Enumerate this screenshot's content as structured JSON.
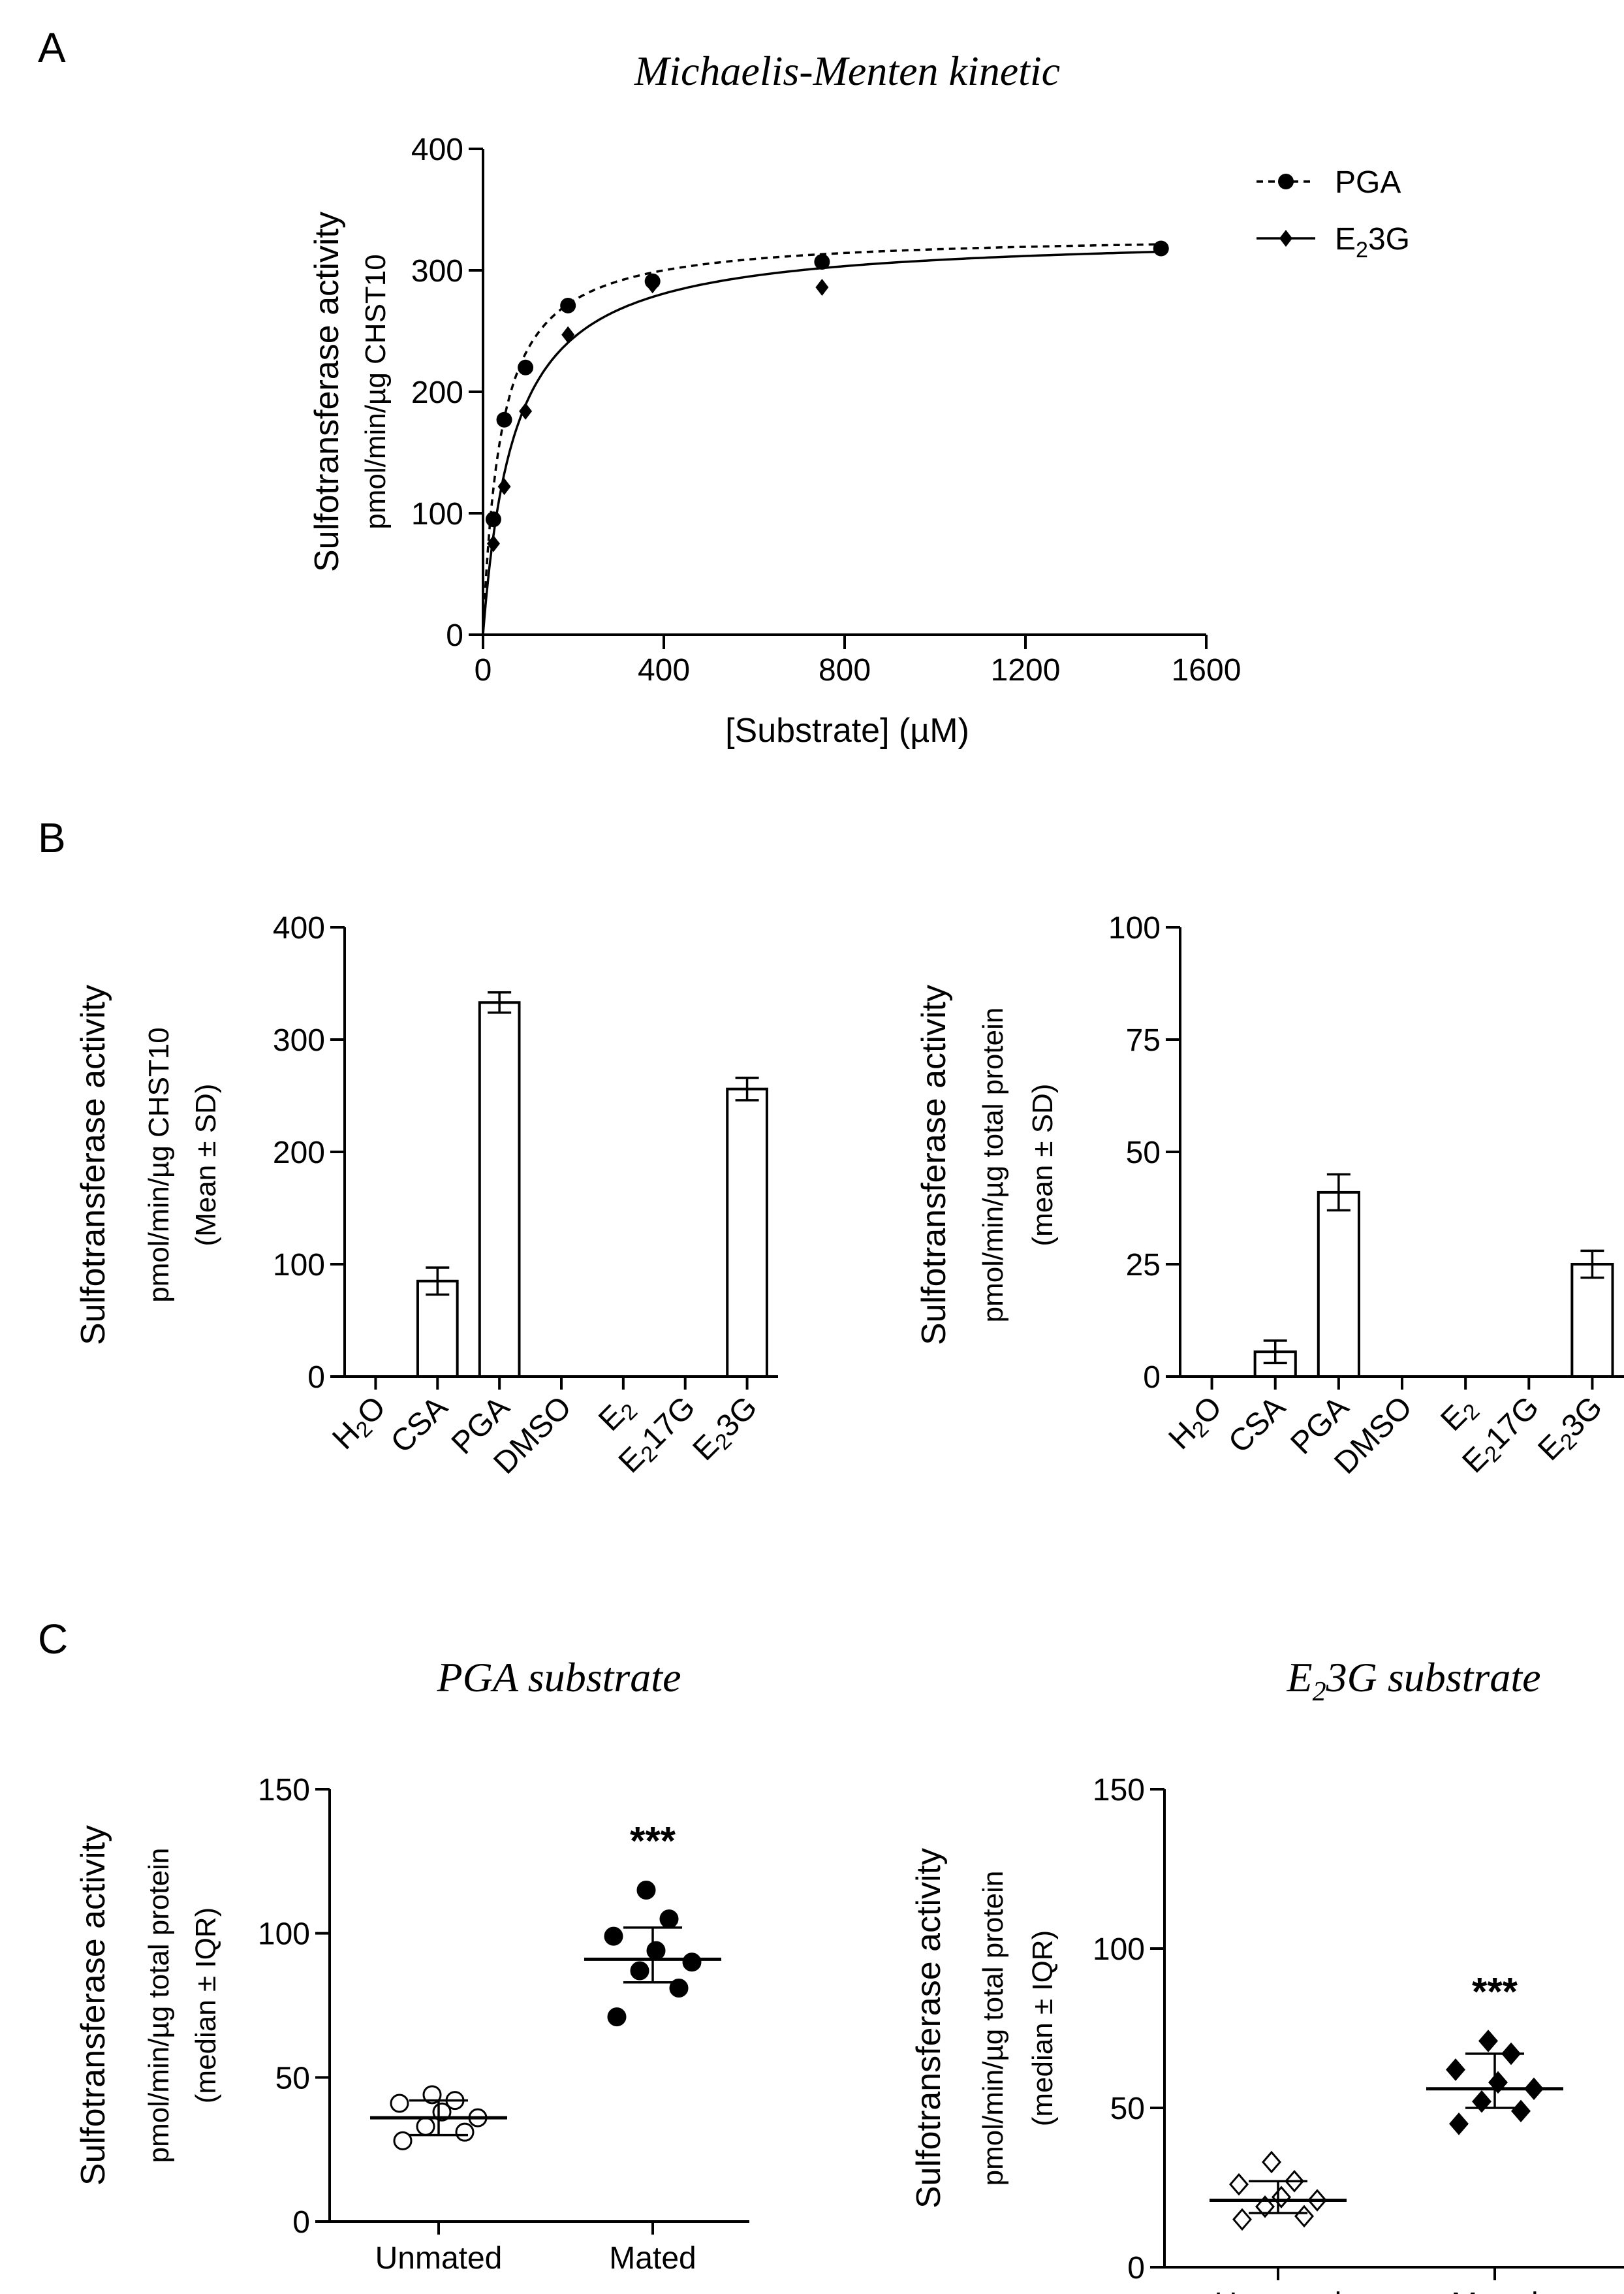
{
  "panels": {
    "A": "A",
    "B": "B",
    "C": "C"
  },
  "chart_data": [
    {
      "id": "A",
      "type": "scatter",
      "title": "Michaelis-Menten kinetic",
      "xlabel": "[Substrate] (µM)",
      "ylabel": "Sulfotransferase activity",
      "ylabel_sub": "pmol/min/µg CHST10",
      "xlim": [
        0,
        1600
      ],
      "ylim": [
        0,
        400
      ],
      "xticks": [
        0,
        400,
        800,
        1200,
        1600
      ],
      "yticks": [
        0,
        100,
        200,
        300,
        400
      ],
      "legend_position": "top-right",
      "series": [
        {
          "name": "PGA",
          "marker": "circle",
          "line": "dashed",
          "fit": {
            "vmax": 330,
            "km": 40
          },
          "x": [
            23,
            47,
            94,
            188,
            375,
            750,
            1500
          ],
          "y": [
            95,
            177,
            220,
            271,
            291,
            307,
            318
          ]
        },
        {
          "name": "E2_3G",
          "name_main": "E",
          "name_sub": "2",
          "name_tail": "3G",
          "marker": "diamond",
          "line": "solid",
          "fit": {
            "vmax": 330,
            "km": 70
          },
          "x": [
            23,
            47,
            94,
            188,
            375,
            750
          ],
          "y": [
            75,
            122,
            184,
            247,
            288,
            286
          ]
        }
      ]
    },
    {
      "id": "B1",
      "type": "bar",
      "ylabel": "Sulfotransferase activity",
      "ylabel_sub": "pmol/min/µg CHST10",
      "ylabel_sub2": "(Mean ± SD)",
      "ylim": [
        0,
        400
      ],
      "yticks": [
        0,
        100,
        200,
        300,
        400
      ],
      "categories": [
        {
          "main": "H",
          "sub": "2",
          "tail": "O"
        },
        {
          "main": "CSA",
          "sub": "",
          "tail": ""
        },
        {
          "main": "PGA",
          "sub": "",
          "tail": ""
        },
        {
          "main": "DMSO",
          "sub": "",
          "tail": ""
        },
        {
          "main": "E",
          "sub": "2",
          "tail": ""
        },
        {
          "main": "E",
          "sub": "2",
          "tail": "17G"
        },
        {
          "main": "E",
          "sub": "2",
          "tail": "3G"
        }
      ],
      "values": [
        0,
        85,
        333,
        0,
        0,
        0,
        256
      ],
      "errors": [
        0,
        12,
        9,
        0,
        0,
        0,
        10
      ]
    },
    {
      "id": "B2",
      "type": "bar",
      "ylabel": "Sulfotransferase activity",
      "ylabel_sub": "pmol/min/µg total protein",
      "ylabel_sub2": "(mean ± SD)",
      "ylim": [
        0,
        100
      ],
      "yticks": [
        0,
        25,
        50,
        75,
        100
      ],
      "categories": [
        {
          "main": "H",
          "sub": "2",
          "tail": "O"
        },
        {
          "main": "CSA",
          "sub": "",
          "tail": ""
        },
        {
          "main": "PGA",
          "sub": "",
          "tail": ""
        },
        {
          "main": "DMSO",
          "sub": "",
          "tail": ""
        },
        {
          "main": "E",
          "sub": "2",
          "tail": ""
        },
        {
          "main": "E",
          "sub": "2",
          "tail": "17G"
        },
        {
          "main": "E",
          "sub": "2",
          "tail": "3G"
        }
      ],
      "values": [
        0,
        5.5,
        41,
        0,
        0,
        0,
        25
      ],
      "errors": [
        0,
        2.5,
        4,
        0,
        0,
        0,
        3
      ]
    },
    {
      "id": "C1",
      "type": "scatter",
      "title": "PGA substrate",
      "ylabel": "Sulfotransferase activity",
      "ylabel_sub": "pmol/min/µg total protein",
      "ylabel_sub2": "(median ± IQR)",
      "ylim": [
        0,
        150
      ],
      "yticks": [
        0,
        50,
        100,
        150
      ],
      "categories": [
        "Unmated",
        "Mated"
      ],
      "significance": "***",
      "groups": [
        {
          "name": "Unmated",
          "marker": "open-circle",
          "median": 36,
          "q1": 30,
          "q3": 42,
          "values": [
            28,
            31,
            33,
            36,
            38,
            41,
            42,
            44
          ]
        },
        {
          "name": "Mated",
          "marker": "filled-circle",
          "median": 91,
          "q1": 83,
          "q3": 102,
          "values": [
            71,
            81,
            87,
            90,
            94,
            99,
            105,
            115
          ]
        }
      ]
    },
    {
      "id": "C2",
      "type": "scatter",
      "title": "E2 3G substrate",
      "title_main": "E",
      "title_sub": "2",
      "title_tail": "3G substrate",
      "ylabel": "Sulfotransferase activity",
      "ylabel_sub": "pmol/min/µg total protein",
      "ylabel_sub2": "(median ± IQR)",
      "ylim": [
        0,
        150
      ],
      "yticks": [
        0,
        50,
        100,
        150
      ],
      "categories": [
        "Unmated",
        "Mated"
      ],
      "significance": "***",
      "groups": [
        {
          "name": "Unmated",
          "marker": "open-diamond",
          "median": 21,
          "q1": 17,
          "q3": 27,
          "values": [
            15,
            16,
            19,
            21,
            22,
            26,
            27,
            33
          ]
        },
        {
          "name": "Mated",
          "marker": "filled-diamond",
          "median": 56,
          "q1": 50,
          "q3": 67,
          "values": [
            45,
            49,
            52,
            56,
            58,
            62,
            67,
            71
          ]
        }
      ]
    }
  ]
}
